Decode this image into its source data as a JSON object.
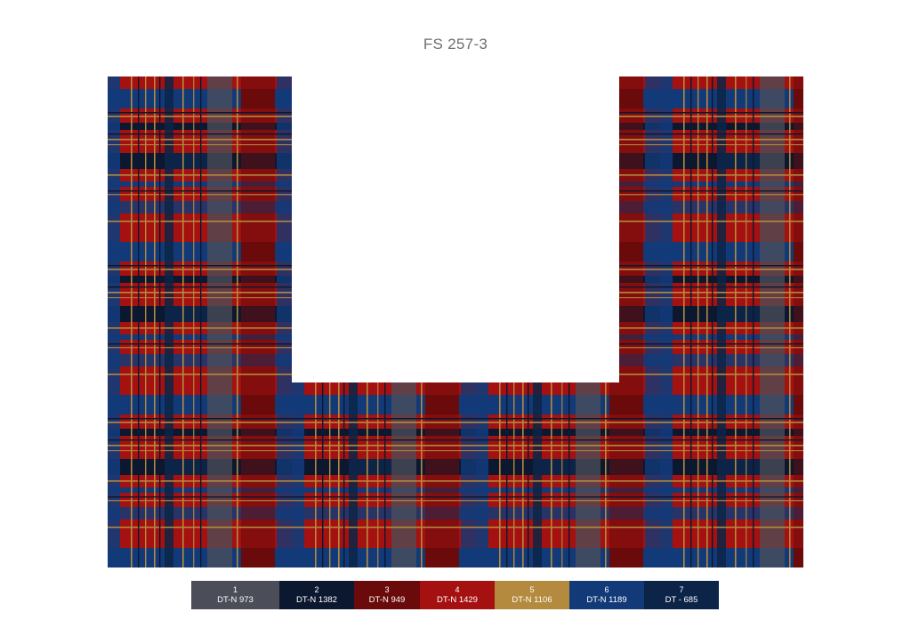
{
  "title": "FS 257-3",
  "rug": {
    "shape": "u-shape",
    "pattern": "tartan-plaid",
    "colors": {
      "c1": "#4b4e59",
      "c2": "#0c1830",
      "c3": "#6a0a0a",
      "c4": "#a51010",
      "c5": "#b38a3e",
      "c6": "#123a78",
      "c7": "#0b2447"
    }
  },
  "swatches": [
    {
      "num": "1",
      "code": "DT-N 973",
      "color": "#4b4e59"
    },
    {
      "num": "2",
      "code": "DT-N 1382",
      "color": "#0c1830"
    },
    {
      "num": "3",
      "code": "DT-N 949",
      "color": "#6a0a0a"
    },
    {
      "num": "4",
      "code": "DT-N 1429",
      "color": "#a51010"
    },
    {
      "num": "5",
      "code": "DT-N 1106",
      "color": "#b38a3e"
    },
    {
      "num": "6",
      "code": "DT-N 1189",
      "color": "#123a78"
    },
    {
      "num": "7",
      "code": "DT - 685",
      "color": "#0b2447"
    }
  ]
}
